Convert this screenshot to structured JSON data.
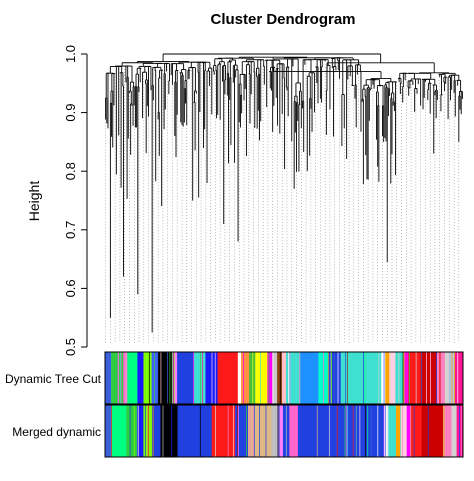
{
  "chart_data": {
    "type": "dendrogram",
    "title": "Cluster Dendrogram",
    "ylabel": "Height",
    "xlabel": "",
    "ylim": [
      0.5,
      1.0
    ],
    "yticks": [
      0.5,
      0.6,
      0.7,
      0.8,
      0.9,
      1.0
    ],
    "ytick_labels": [
      "0.5",
      "0.6",
      "0.7",
      "0.8",
      "0.9",
      "1.0"
    ],
    "grid": false,
    "leaf_count": 300,
    "merge_heights": {
      "top": 1.0,
      "second": 0.985,
      "third": 0.97
    },
    "clusters": [
      {
        "n_leaves": 90,
        "min_height": 0.55,
        "base_height": 0.99
      },
      {
        "n_leaves": 125,
        "min_height": 0.65,
        "base_height": 0.995
      },
      {
        "n_leaves": 30,
        "min_height": 0.62,
        "base_height": 0.96
      },
      {
        "n_leaves": 55,
        "min_height": 0.83,
        "base_height": 0.97
      }
    ],
    "deep_leaves": [
      {
        "leaf_fraction": 0.014,
        "height": 0.55
      },
      {
        "leaf_fraction": 0.05,
        "height": 0.62
      },
      {
        "leaf_fraction": 0.09,
        "height": 0.59
      },
      {
        "leaf_fraction": 0.13,
        "height": 0.525
      },
      {
        "leaf_fraction": 0.26,
        "height": 0.755
      },
      {
        "leaf_fraction": 0.33,
        "height": 0.71
      },
      {
        "leaf_fraction": 0.37,
        "height": 0.68
      },
      {
        "leaf_fraction": 0.53,
        "height": 0.77
      },
      {
        "leaf_fraction": 0.79,
        "height": 0.645
      },
      {
        "leaf_fraction": 0.92,
        "height": 0.83
      },
      {
        "leaf_fraction": 0.99,
        "height": 0.85
      }
    ],
    "color_rows": [
      {
        "label": "Dynamic Tree Cut",
        "segments": [
          {
            "color": "#3a5fd8",
            "fraction": 0.015
          },
          {
            "color": "#2ecc40",
            "fraction": 0.03
          },
          {
            "color": "#ff66cc",
            "fraction": 0.01
          },
          {
            "color": "#00ff80",
            "fraction": 0.025
          },
          {
            "color": "#1a1aff",
            "fraction": 0.015
          },
          {
            "color": "#7fff00",
            "fraction": 0.02
          },
          {
            "color": "#4060ff",
            "fraction": 0.015
          },
          {
            "color": "#000000",
            "fraction": 0.04
          },
          {
            "color": "#ff80ff",
            "fraction": 0.008
          },
          {
            "color": "#2040e0",
            "fraction": 0.04
          },
          {
            "color": "#40e0d0",
            "fraction": 0.03
          },
          {
            "color": "#1a1aff",
            "fraction": 0.03
          },
          {
            "color": "#ff1a1a",
            "fraction": 0.05
          },
          {
            "color": "#ffffff",
            "fraction": 0.008
          },
          {
            "color": "#ff9040",
            "fraction": 0.02
          },
          {
            "color": "#40c040",
            "fraction": 0.015
          },
          {
            "color": "#ffff00",
            "fraction": 0.03
          },
          {
            "color": "#ff00ff",
            "fraction": 0.012
          },
          {
            "color": "#c8c8c8",
            "fraction": 0.012
          },
          {
            "color": "#8b4513",
            "fraction": 0.012
          },
          {
            "color": "#ffc0cb",
            "fraction": 0.01
          },
          {
            "color": "#40e0d0",
            "fraction": 0.035
          },
          {
            "color": "#1e90ff",
            "fraction": 0.045
          },
          {
            "color": "#00ffcc",
            "fraction": 0.025
          },
          {
            "color": "#2040e0",
            "fraction": 0.03
          },
          {
            "color": "#40e0d0",
            "fraction": 0.1
          },
          {
            "color": "#ffffff",
            "fraction": 0.01
          },
          {
            "color": "#ffa500",
            "fraction": 0.01
          },
          {
            "color": "#ffd0e0",
            "fraction": 0.015
          },
          {
            "color": "#40e0d0",
            "fraction": 0.02
          },
          {
            "color": "#ff00ff",
            "fraction": 0.012
          },
          {
            "color": "#ff1a1a",
            "fraction": 0.03
          },
          {
            "color": "#cc0000",
            "fraction": 0.04
          },
          {
            "color": "#ff80c0",
            "fraction": 0.02
          },
          {
            "color": "#d3d3d3",
            "fraction": 0.01
          },
          {
            "color": "#b0c4de",
            "fraction": 0.015
          },
          {
            "color": "#ff1493",
            "fraction": 0.02
          }
        ]
      },
      {
        "label": "Merged dynamic",
        "segments": [
          {
            "color": "#3a5fd8",
            "fraction": 0.015
          },
          {
            "color": "#00ff80",
            "fraction": 0.035
          },
          {
            "color": "#2ecc40",
            "fraction": 0.025
          },
          {
            "color": "#1a1aff",
            "fraction": 0.015
          },
          {
            "color": "#7fff00",
            "fraction": 0.02
          },
          {
            "color": "#2040e0",
            "fraction": 0.02
          },
          {
            "color": "#000000",
            "fraction": 0.04
          },
          {
            "color": "#2040e0",
            "fraction": 0.08
          },
          {
            "color": "#ff1a1a",
            "fraction": 0.055
          },
          {
            "color": "#2040e0",
            "fraction": 0.03
          },
          {
            "color": "#deb887",
            "fraction": 0.055
          },
          {
            "color": "#c0c0c0",
            "fraction": 0.015
          },
          {
            "color": "#ff80ff",
            "fraction": 0.012
          },
          {
            "color": "#2040e0",
            "fraction": 0.015
          },
          {
            "color": "#ff66cc",
            "fraction": 0.02
          },
          {
            "color": "#2040e0",
            "fraction": 0.2
          },
          {
            "color": "#ffffff",
            "fraction": 0.01
          },
          {
            "color": "#40e0d0",
            "fraction": 0.02
          },
          {
            "color": "#ffa500",
            "fraction": 0.01
          },
          {
            "color": "#ffd0e0",
            "fraction": 0.015
          },
          {
            "color": "#ff00ff",
            "fraction": 0.01
          },
          {
            "color": "#ff1a1a",
            "fraction": 0.025
          },
          {
            "color": "#cc0000",
            "fraction": 0.05
          },
          {
            "color": "#ff80c0",
            "fraction": 0.02
          },
          {
            "color": "#d3d3d3",
            "fraction": 0.012
          },
          {
            "color": "#ff1493",
            "fraction": 0.015
          }
        ]
      }
    ]
  },
  "colors": {
    "background": "#ffffff",
    "tree": "#000000",
    "dotted_guides": "#8a8a8a",
    "text": "#000000"
  }
}
